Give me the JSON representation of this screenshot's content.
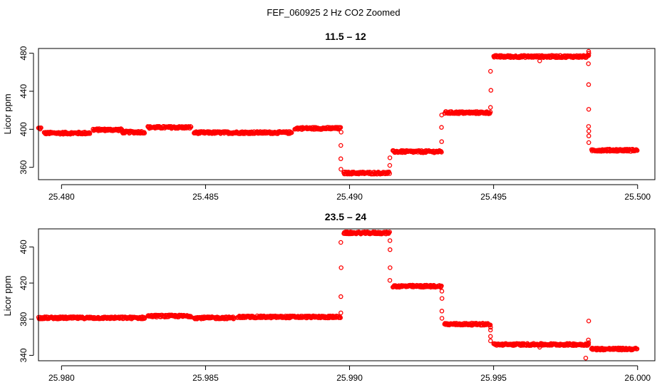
{
  "figure_title": "FEF_060925  2 Hz CO2 Zoomed",
  "chart_data": [
    {
      "type": "scatter",
      "title": "11.5 – 12",
      "xlabel": "",
      "ylabel": "Licor ppm",
      "xlim": [
        25.4792,
        25.5006
      ],
      "ylim": [
        347,
        485
      ],
      "xticks": [
        "25.480",
        "25.485",
        "25.490",
        "25.495",
        "25.500"
      ],
      "yticks": [
        "360",
        "400",
        "440",
        "480"
      ],
      "grid": false,
      "marker": "open-circle",
      "color": "#ff0000",
      "series": [
        {
          "segments": [
            {
              "x0": 25.4792,
              "x1": 25.4793,
              "y": 401,
              "noise": 1.2
            },
            {
              "x0": 25.4794,
              "x1": 25.481,
              "y": 396,
              "noise": 1.2
            },
            {
              "x0": 25.4811,
              "x1": 25.4821,
              "y": 399.5,
              "noise": 1.2
            },
            {
              "x0": 25.4821,
              "x1": 25.4829,
              "y": 397,
              "noise": 1.2
            },
            {
              "x0": 25.483,
              "x1": 25.4845,
              "y": 402,
              "noise": 1.2
            },
            {
              "x0": 25.4846,
              "x1": 25.488,
              "y": 396.5,
              "noise": 1.2
            },
            {
              "x0": 25.4881,
              "x1": 25.4897,
              "y": 401,
              "noise": 1.2
            },
            {
              "x0": 25.4898,
              "x1": 25.4914,
              "y": 354,
              "noise": 1.2
            },
            {
              "x0": 25.4915,
              "x1": 25.4932,
              "y": 376.5,
              "noise": 1.2
            },
            {
              "x0": 25.4933,
              "x1": 25.4949,
              "y": 417.5,
              "noise": 1.2
            },
            {
              "x0": 25.495,
              "x1": 25.4983,
              "y": 476.5,
              "noise": 1.2
            },
            {
              "x0": 25.4984,
              "x1": 25.5,
              "y": 378,
              "noise": 1.2
            }
          ],
          "transitions": [
            {
              "x": 25.4897,
              "ys": [
                397,
                383,
                369,
                358
              ]
            },
            {
              "x": 25.4914,
              "ys": [
                362,
                370
              ]
            },
            {
              "x": 25.4932,
              "ys": [
                387,
                402,
                415
              ]
            },
            {
              "x": 25.4949,
              "ys": [
                423,
                441,
                461
              ]
            },
            {
              "x": 25.4983,
              "ys": [
                482,
                480,
                469,
                447,
                421,
                403,
                398,
                393,
                386
              ]
            }
          ],
          "extra_points": [
            [
              25.4966,
              472
            ]
          ]
        }
      ]
    },
    {
      "type": "scatter",
      "title": "23.5 – 24",
      "xlabel": "",
      "ylabel": "Licor ppm",
      "xlim": [
        25.9792,
        26.0006
      ],
      "ylim": [
        334,
        480
      ],
      "xticks": [
        "25.980",
        "25.985",
        "25.990",
        "25.995",
        "26.000"
      ],
      "yticks": [
        "340",
        "380",
        "420",
        "460"
      ],
      "grid": false,
      "marker": "open-circle",
      "color": "#ff0000",
      "series": [
        {
          "segments": [
            {
              "x0": 25.9792,
              "x1": 25.9829,
              "y": 381.5,
              "noise": 1.2
            },
            {
              "x0": 25.983,
              "x1": 25.9845,
              "y": 383.5,
              "noise": 1.2
            },
            {
              "x0": 25.9846,
              "x1": 25.986,
              "y": 381.5,
              "noise": 1.2
            },
            {
              "x0": 25.9861,
              "x1": 25.9897,
              "y": 382.5,
              "noise": 1.2
            },
            {
              "x0": 25.9898,
              "x1": 25.9914,
              "y": 475.5,
              "noise": 1.2
            },
            {
              "x0": 25.9915,
              "x1": 25.9932,
              "y": 416.5,
              "noise": 1.2
            },
            {
              "x0": 25.9933,
              "x1": 25.9949,
              "y": 374.5,
              "noise": 1.2
            },
            {
              "x0": 25.995,
              "x1": 25.9983,
              "y": 352,
              "noise": 1.2
            },
            {
              "x0": 25.9984,
              "x1": 26.0,
              "y": 347,
              "noise": 1.2
            }
          ],
          "transitions": [
            {
              "x": 25.9897,
              "ys": [
                387,
                405,
                437,
                465
              ]
            },
            {
              "x": 25.9914,
              "ys": [
                467,
                457,
                437,
                423
              ]
            },
            {
              "x": 25.9932,
              "ys": [
                411,
                403,
                389,
                381
              ]
            },
            {
              "x": 25.9949,
              "ys": [
                371,
                368,
                361,
                356
              ]
            },
            {
              "x": 25.9983,
              "ys": [
                378,
                357,
                354
              ]
            }
          ],
          "extra_points": [
            [
              25.9982,
              337
            ],
            [
              25.9966,
              349
            ]
          ]
        }
      ]
    }
  ]
}
